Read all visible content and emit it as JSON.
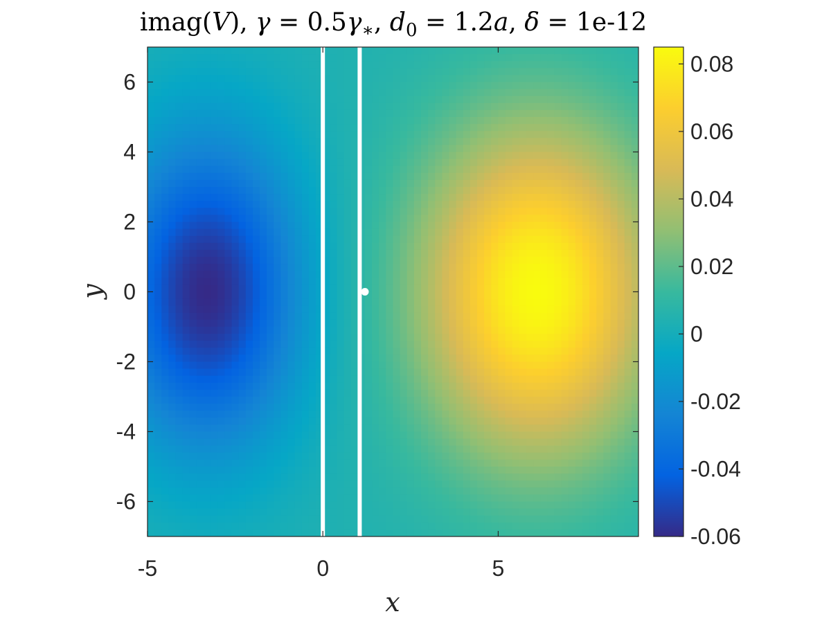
{
  "chart_data": {
    "type": "heatmap",
    "title": "imag(V), γ = 0.5γ*, d0 = 1.2a, δ = 1e-12",
    "title_parts": {
      "prefix": "imag(",
      "var": "V",
      "gamma_sym": "γ",
      "gamma_val": "0.5",
      "gamma_star": "∗",
      "d_sym": "d",
      "d_sub": "0",
      "d_val": "1.2",
      "a_sym": "a",
      "delta_sym": "δ",
      "delta_val": "1e-12"
    },
    "xlabel": "x",
    "ylabel": "y",
    "xlim": [
      -5,
      9
    ],
    "ylim": [
      -7,
      7
    ],
    "xticks": [
      -5,
      0,
      5
    ],
    "yticks": [
      -6,
      -4,
      -2,
      0,
      2,
      4,
      6
    ],
    "colorbar": {
      "range": [
        -0.06,
        0.085
      ],
      "ticks": [
        -0.06,
        -0.04,
        -0.02,
        0,
        0.02,
        0.04,
        0.06,
        0.08
      ],
      "tick_labels": [
        "-0.06",
        "-0.04",
        "-0.02",
        "0",
        "0.02",
        "0.04",
        "0.06",
        "0.08"
      ],
      "colormap": "parula"
    },
    "extrema": [
      {
        "kind": "min",
        "x": -3.3,
        "y": 0,
        "value": -0.06
      },
      {
        "kind": "max",
        "x": 6.1,
        "y": 0,
        "value": 0.085
      }
    ],
    "vertical_lines_x": [
      0,
      1.05
    ],
    "marker": {
      "x": 1.2,
      "y": 0,
      "color": "#ffffff"
    },
    "line_color": "#ffffff"
  }
}
